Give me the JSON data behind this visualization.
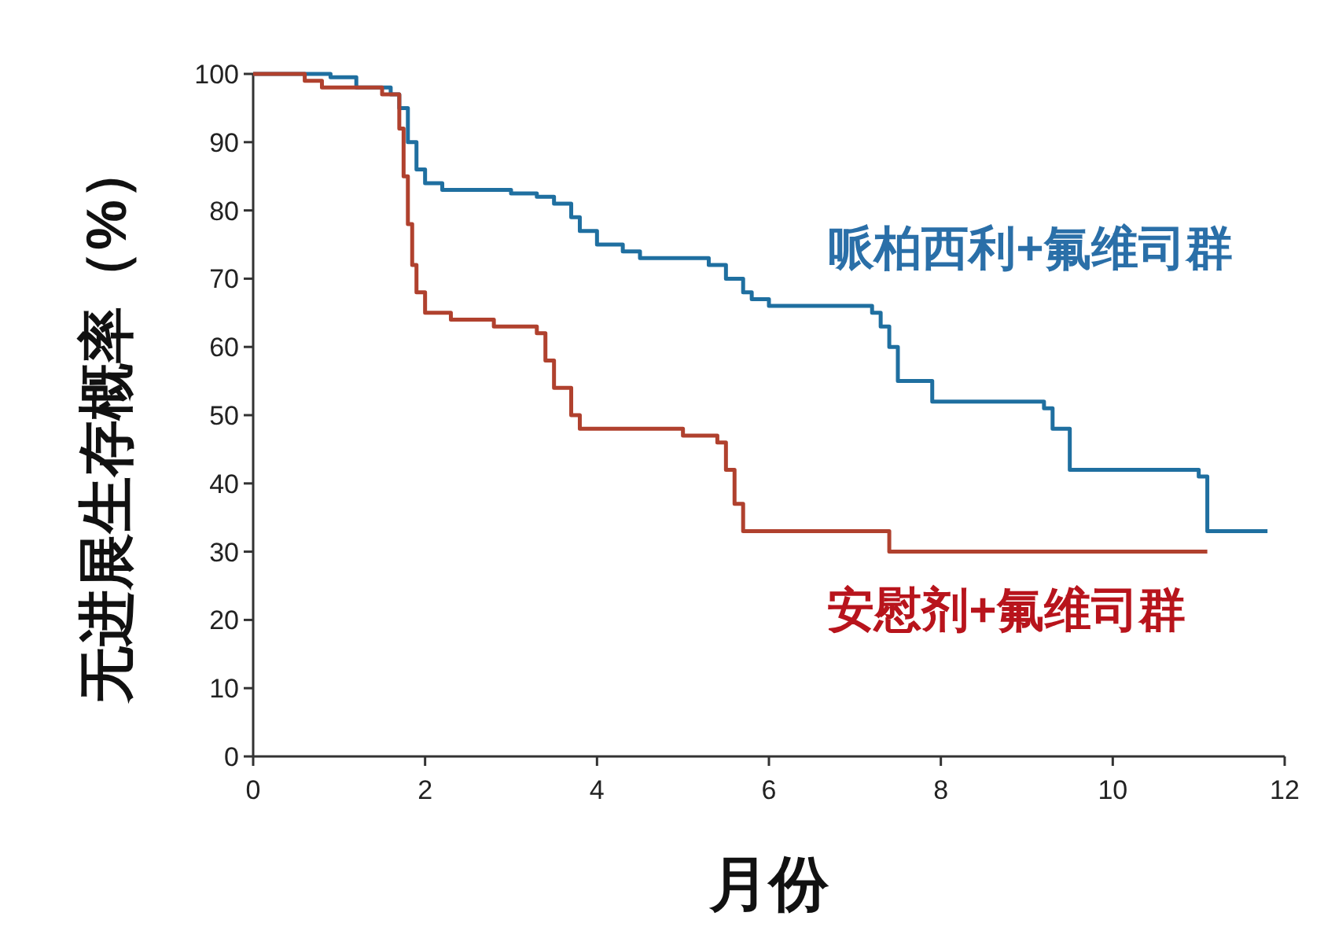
{
  "chart_data": {
    "type": "step",
    "xlabel": "月份",
    "ylabel": "无进展生存概率（%）",
    "xlim": [
      0,
      12
    ],
    "ylim": [
      0,
      100
    ],
    "xticks": [
      0,
      2,
      4,
      6,
      8,
      10,
      12
    ],
    "yticks": [
      0,
      10,
      20,
      30,
      40,
      50,
      60,
      70,
      80,
      90,
      100
    ],
    "grid": false,
    "series": [
      {
        "name": "哌柏西利+氟维司群",
        "color": "#1f6fa0",
        "x": [
          0,
          0.9,
          1.2,
          1.6,
          1.7,
          1.8,
          1.9,
          2.0,
          2.2,
          3.0,
          3.3,
          3.5,
          3.7,
          3.8,
          4.0,
          4.3,
          4.5,
          5.3,
          5.5,
          5.7,
          5.8,
          6.0,
          7.2,
          7.3,
          7.4,
          7.5,
          7.9,
          9.2,
          9.3,
          9.5,
          11.0,
          11.1,
          11.8
        ],
        "values": [
          100,
          99.5,
          98,
          97,
          95,
          90,
          86,
          84,
          83,
          82.5,
          82,
          81,
          79,
          77,
          75,
          74,
          73,
          72,
          70,
          68,
          67,
          66,
          65,
          63,
          60,
          55,
          52,
          51,
          48,
          42,
          41,
          33,
          33
        ]
      },
      {
        "name": "安慰剂+氟维司群",
        "color": "#b0412e",
        "x": [
          0,
          0.6,
          0.8,
          1.5,
          1.7,
          1.75,
          1.8,
          1.85,
          1.9,
          2.0,
          2.3,
          2.8,
          3.3,
          3.4,
          3.5,
          3.7,
          3.8,
          5.0,
          5.4,
          5.5,
          5.6,
          5.7,
          7.4,
          11.1
        ],
        "values": [
          100,
          99,
          98,
          97,
          92,
          85,
          78,
          72,
          68,
          65,
          64,
          63,
          62,
          58,
          54,
          50,
          48,
          47,
          46,
          42,
          37,
          33,
          30,
          30
        ]
      }
    ]
  }
}
